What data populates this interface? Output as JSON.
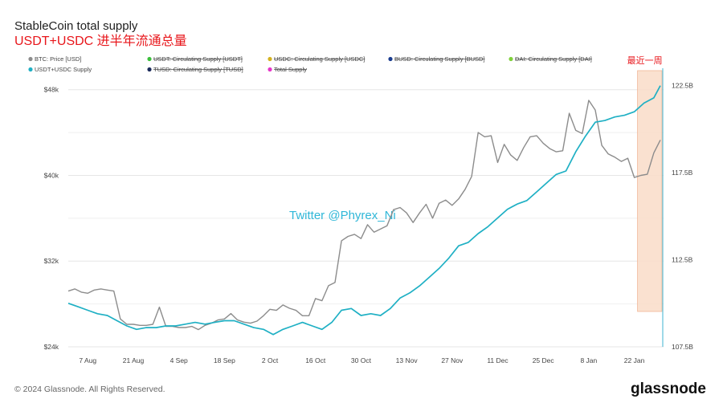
{
  "chart_data": {
    "type": "line",
    "title": "StableCoin total supply",
    "subtitle": "USDT+USDC 进半年流通总量",
    "legend": [
      {
        "name": "BTC: Price [USD]",
        "color": "#8c8c8c",
        "active": true
      },
      {
        "name": "USDT: Circulating Supply [USDT]",
        "color": "#3bbf3b",
        "active": false
      },
      {
        "name": "USDC: Circulating Supply [USDC]",
        "color": "#d4b21f",
        "active": false
      },
      {
        "name": "BUSD: Circulating Supply [BUSD]",
        "color": "#1a3c8f",
        "active": false
      },
      {
        "name": "DAI: Circulating Supply [DAI]",
        "color": "#7fd13b",
        "active": false
      },
      {
        "name": "USDT+USDC Supply",
        "color": "#1fb0c4",
        "active": true
      },
      {
        "name": "TUSD: Circulating Supply [TUSD]",
        "color": "#1b2a5a",
        "active": false
      },
      {
        "name": "Total Supply",
        "color": "#e636c8",
        "active": false
      }
    ],
    "x_ticks": [
      "7 Aug",
      "21 Aug",
      "4 Sep",
      "18 Sep",
      "2 Oct",
      "16 Oct",
      "30 Oct",
      "13 Nov",
      "27 Nov",
      "11 Dec",
      "25 Dec",
      "8 Jan",
      "22 Jan"
    ],
    "y_left_ticks": [
      "$24k",
      "$32k",
      "$40k",
      "$48k"
    ],
    "y_left_range": [
      24000,
      50000
    ],
    "y_right_ticks": [
      "107.5B",
      "112.5B",
      "117.5B",
      "122.5B"
    ],
    "y_right_range": [
      107.5,
      123.5
    ],
    "annotation": "最近一周",
    "watermark": "Twitter @Phyrex_Ni",
    "series": [
      {
        "name": "BTC: Price [USD]",
        "axis": "left",
        "color": "#8c8c8c",
        "x": [
          "2023-08-01",
          "2023-08-03",
          "2023-08-05",
          "2023-08-07",
          "2023-08-09",
          "2023-08-11",
          "2023-08-13",
          "2023-08-15",
          "2023-08-17",
          "2023-08-19",
          "2023-08-21",
          "2023-08-23",
          "2023-08-25",
          "2023-08-27",
          "2023-08-29",
          "2023-08-31",
          "2023-09-02",
          "2023-09-04",
          "2023-09-06",
          "2023-09-08",
          "2023-09-10",
          "2023-09-12",
          "2023-09-14",
          "2023-09-16",
          "2023-09-18",
          "2023-09-20",
          "2023-09-22",
          "2023-09-24",
          "2023-09-26",
          "2023-09-28",
          "2023-09-30",
          "2023-10-02",
          "2023-10-04",
          "2023-10-06",
          "2023-10-08",
          "2023-10-10",
          "2023-10-12",
          "2023-10-14",
          "2023-10-16",
          "2023-10-18",
          "2023-10-20",
          "2023-10-22",
          "2023-10-24",
          "2023-10-26",
          "2023-10-28",
          "2023-10-30",
          "2023-11-01",
          "2023-11-03",
          "2023-11-05",
          "2023-11-07",
          "2023-11-09",
          "2023-11-11",
          "2023-11-13",
          "2023-11-15",
          "2023-11-17",
          "2023-11-19",
          "2023-11-21",
          "2023-11-23",
          "2023-11-25",
          "2023-11-27",
          "2023-11-29",
          "2023-12-01",
          "2023-12-03",
          "2023-12-05",
          "2023-12-07",
          "2023-12-09",
          "2023-12-11",
          "2023-12-13",
          "2023-12-15",
          "2023-12-17",
          "2023-12-19",
          "2023-12-21",
          "2023-12-23",
          "2023-12-25",
          "2023-12-27",
          "2023-12-29",
          "2023-12-31",
          "2024-01-02",
          "2024-01-04",
          "2024-01-06",
          "2024-01-08",
          "2024-01-10",
          "2024-01-12",
          "2024-01-14",
          "2024-01-16",
          "2024-01-18",
          "2024-01-20",
          "2024-01-22",
          "2024-01-24",
          "2024-01-26",
          "2024-01-28",
          "2024-01-30"
        ],
        "values": [
          29200,
          29400,
          29100,
          29000,
          29300,
          29400,
          29300,
          29200,
          26600,
          26100,
          26100,
          26000,
          26000,
          26100,
          27700,
          25900,
          25900,
          25800,
          25800,
          25900,
          25600,
          26000,
          26200,
          26500,
          26600,
          27100,
          26500,
          26300,
          26200,
          26400,
          26900,
          27500,
          27400,
          27900,
          27600,
          27400,
          26900,
          26900,
          28500,
          28300,
          29700,
          30000,
          33900,
          34300,
          34500,
          34100,
          35400,
          34700,
          35000,
          35300,
          36800,
          37000,
          36500,
          35600,
          36500,
          37300,
          36000,
          37400,
          37700,
          37200,
          37800,
          38700,
          39900,
          44000,
          43600,
          43700,
          41200,
          42900,
          41900,
          41400,
          42600,
          43600,
          43700,
          43000,
          42500,
          42200,
          42300,
          45800,
          44200,
          43900,
          47000,
          46100,
          42800,
          42000,
          41700,
          41300,
          41600,
          39800,
          40000,
          40100,
          42100,
          43300
        ]
      },
      {
        "name": "USDT+USDC Supply",
        "axis": "right",
        "color": "#1fb0c4",
        "x": [
          "2023-08-01",
          "2023-08-04",
          "2023-08-07",
          "2023-08-10",
          "2023-08-13",
          "2023-08-16",
          "2023-08-19",
          "2023-08-22",
          "2023-08-25",
          "2023-08-28",
          "2023-08-31",
          "2023-09-03",
          "2023-09-06",
          "2023-09-09",
          "2023-09-12",
          "2023-09-15",
          "2023-09-18",
          "2023-09-21",
          "2023-09-24",
          "2023-09-27",
          "2023-09-30",
          "2023-10-03",
          "2023-10-06",
          "2023-10-09",
          "2023-10-12",
          "2023-10-15",
          "2023-10-18",
          "2023-10-21",
          "2023-10-24",
          "2023-10-27",
          "2023-10-30",
          "2023-11-02",
          "2023-11-05",
          "2023-11-08",
          "2023-11-11",
          "2023-11-14",
          "2023-11-17",
          "2023-11-20",
          "2023-11-23",
          "2023-11-26",
          "2023-11-29",
          "2023-12-02",
          "2023-12-05",
          "2023-12-08",
          "2023-12-11",
          "2023-12-14",
          "2023-12-17",
          "2023-12-20",
          "2023-12-23",
          "2023-12-26",
          "2023-12-29",
          "2024-01-01",
          "2024-01-04",
          "2024-01-07",
          "2024-01-10",
          "2024-01-13",
          "2024-01-16",
          "2024-01-19",
          "2024-01-22",
          "2024-01-25",
          "2024-01-28",
          "2024-01-30"
        ],
        "values": [
          110.0,
          109.8,
          109.6,
          109.4,
          109.3,
          109.0,
          108.7,
          108.5,
          108.6,
          108.6,
          108.7,
          108.7,
          108.8,
          108.9,
          108.8,
          108.9,
          109.0,
          109.0,
          108.8,
          108.6,
          108.5,
          108.2,
          108.5,
          108.7,
          108.9,
          108.7,
          108.5,
          108.9,
          109.6,
          109.7,
          109.3,
          109.4,
          109.3,
          109.7,
          110.3,
          110.6,
          111.0,
          111.5,
          112.0,
          112.6,
          113.3,
          113.5,
          114.0,
          114.4,
          114.9,
          115.4,
          115.7,
          115.9,
          116.4,
          116.9,
          117.4,
          117.6,
          118.7,
          119.6,
          120.4,
          120.5,
          120.7,
          120.8,
          121.0,
          121.5,
          121.8,
          122.5
        ]
      }
    ]
  },
  "footer": {
    "copyright": "© 2024 Glassnode. All Rights Reserved.",
    "brand": "glassnode"
  }
}
